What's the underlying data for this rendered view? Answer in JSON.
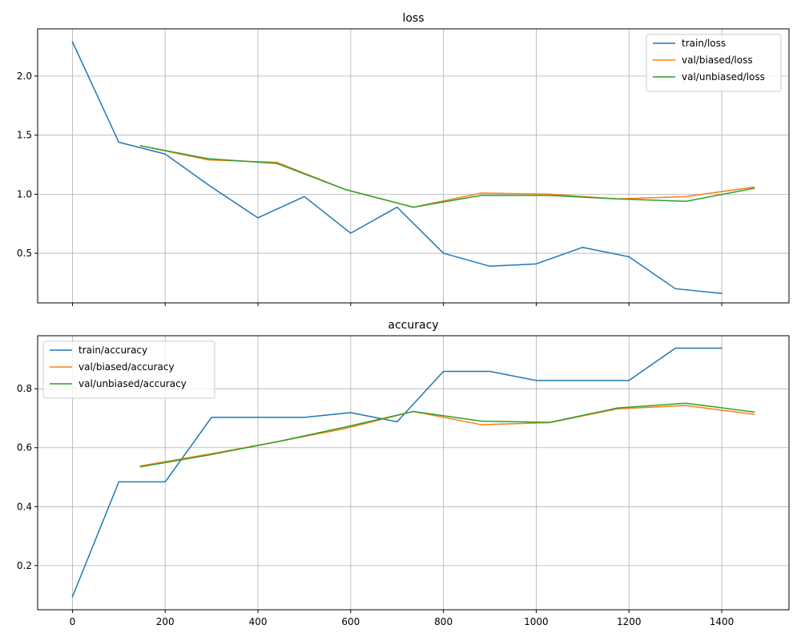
{
  "chart_data": [
    {
      "type": "line",
      "title": "loss",
      "xlabel": "",
      "ylabel": "",
      "xlim": [
        -75,
        1545
      ],
      "ylim": [
        0.08,
        2.4
      ],
      "xticks": [
        0,
        200,
        400,
        600,
        800,
        1000,
        1200,
        1400
      ],
      "xtick_labels": [
        "0",
        "200",
        "400",
        "600",
        "800",
        "1000",
        "1200",
        "1400"
      ],
      "show_xtick_labels": false,
      "yticks": [
        0.5,
        1.0,
        1.5,
        2.0
      ],
      "ytick_labels": [
        "0.5",
        "1.0",
        "1.5",
        "2.0"
      ],
      "grid": true,
      "legend_position": "top-right",
      "series": [
        {
          "name": "train/loss",
          "color": "#1f77b4",
          "x": [
            0,
            100,
            200,
            300,
            400,
            500,
            600,
            700,
            800,
            900,
            1000,
            1100,
            1200,
            1300,
            1400
          ],
          "y": [
            2.29,
            1.44,
            1.34,
            1.06,
            0.8,
            0.98,
            0.67,
            0.89,
            0.5,
            0.39,
            0.41,
            0.55,
            0.47,
            0.2,
            0.16
          ]
        },
        {
          "name": "val/biased/loss",
          "color": "#ff7f0e",
          "x": [
            147,
            294,
            441,
            588,
            735,
            882,
            1029,
            1176,
            1323,
            1470
          ],
          "y": [
            1.41,
            1.29,
            1.27,
            1.04,
            0.89,
            1.01,
            1.0,
            0.96,
            0.98,
            1.06
          ]
        },
        {
          "name": "val/unbiased/loss",
          "color": "#2ca02c",
          "x": [
            147,
            294,
            441,
            588,
            735,
            882,
            1029,
            1176,
            1323,
            1470
          ],
          "y": [
            1.41,
            1.3,
            1.26,
            1.04,
            0.89,
            0.99,
            0.99,
            0.96,
            0.94,
            1.05
          ]
        }
      ]
    },
    {
      "type": "line",
      "title": "accuracy",
      "xlabel": "",
      "ylabel": "",
      "xlim": [
        -75,
        1545
      ],
      "ylim": [
        0.05,
        0.98
      ],
      "xticks": [
        0,
        200,
        400,
        600,
        800,
        1000,
        1200,
        1400
      ],
      "xtick_labels": [
        "0",
        "200",
        "400",
        "600",
        "800",
        "1000",
        "1200",
        "1400"
      ],
      "show_xtick_labels": true,
      "yticks": [
        0.2,
        0.4,
        0.6,
        0.8
      ],
      "ytick_labels": [
        "0.2",
        "0.4",
        "0.6",
        "0.8"
      ],
      "grid": true,
      "legend_position": "top-left",
      "series": [
        {
          "name": "train/accuracy",
          "color": "#1f77b4",
          "x": [
            0,
            100,
            200,
            300,
            400,
            500,
            600,
            700,
            800,
            900,
            1000,
            1100,
            1200,
            1300,
            1400
          ],
          "y": [
            0.094,
            0.484,
            0.484,
            0.703,
            0.703,
            0.703,
            0.719,
            0.688,
            0.859,
            0.859,
            0.828,
            0.828,
            0.828,
            0.938,
            0.938
          ]
        },
        {
          "name": "val/biased/accuracy",
          "color": "#ff7f0e",
          "x": [
            147,
            294,
            441,
            588,
            735,
            882,
            1029,
            1176,
            1323,
            1470
          ],
          "y": [
            0.538,
            0.578,
            0.62,
            0.665,
            0.723,
            0.678,
            0.685,
            0.732,
            0.743,
            0.713
          ]
        },
        {
          "name": "val/unbiased/accuracy",
          "color": "#2ca02c",
          "x": [
            147,
            294,
            441,
            588,
            735,
            882,
            1029,
            1176,
            1323,
            1470
          ],
          "y": [
            0.535,
            0.575,
            0.62,
            0.67,
            0.723,
            0.69,
            0.686,
            0.735,
            0.751,
            0.721
          ]
        }
      ]
    }
  ]
}
